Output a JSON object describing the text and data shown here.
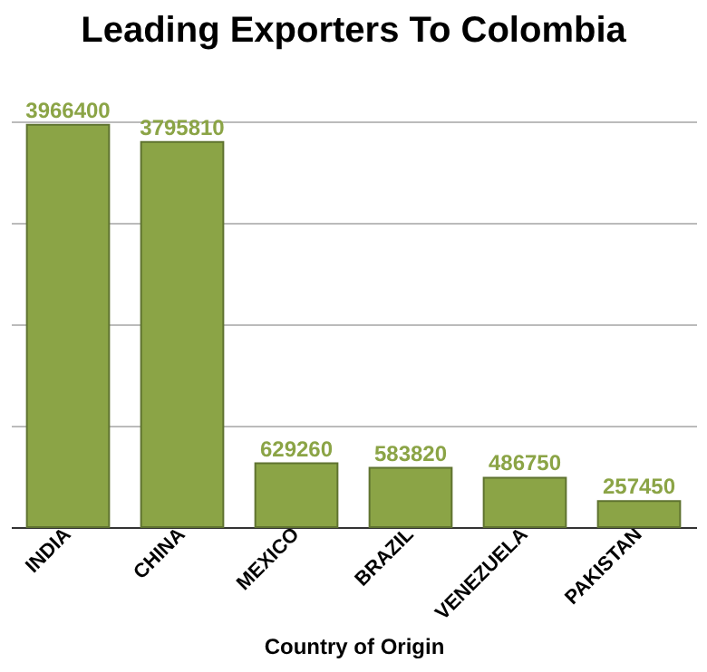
{
  "chart_data": {
    "type": "bar",
    "title": "Leading Exporters To Colombia",
    "xlabel": "Country of Origin",
    "categories": [
      "INDIA",
      "CHINA",
      "MEXICO",
      "BRAZIL",
      "VENEZUELA",
      "PAKISTAN"
    ],
    "values": [
      3966400,
      3795810,
      629260,
      583820,
      486750,
      257450
    ],
    "color": "#8ba446",
    "data_labels": true,
    "grid": "y",
    "tick_labels": "x",
    "ylim": [
      0,
      4000000
    ],
    "yticks": [
      {
        "value": 0,
        "label": null
      },
      {
        "value": 1000000,
        "label": null
      },
      {
        "value": 2000000,
        "label": null
      },
      {
        "value": 3000000,
        "label": null
      },
      {
        "value": 4000000,
        "label": null
      }
    ]
  }
}
